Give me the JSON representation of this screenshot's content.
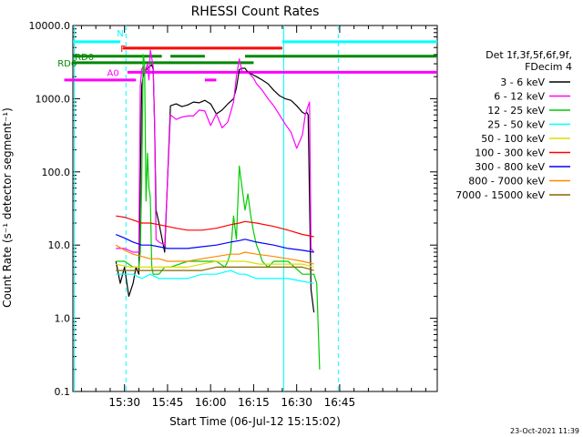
{
  "chart_data": {
    "type": "line",
    "title": "RHESSI Count Rates",
    "xlabel": "Start Time (06-Jul-12 15:15:02)",
    "ylabel": "Count Rate (s⁻¹ detector segment⁻¹)",
    "yscale": "log",
    "ylim": [
      0.1,
      10000
    ],
    "xlim_min": [
      0,
      127
    ],
    "x_tick_labels": [
      "15:30",
      "15:45",
      "16:00",
      "16:15",
      "16:30",
      "16:45"
    ],
    "x_ticks_min": [
      18,
      33,
      48,
      63,
      78,
      93
    ],
    "y_tick_labels": [
      "10000.0",
      "1000.0",
      "100.0",
      "10.0",
      "1.0",
      "0.1"
    ],
    "y_ticks": [
      10000,
      1000,
      100,
      10,
      1,
      0.1
    ],
    "grid": false,
    "legend_position": "right",
    "legend_header": [
      "Det 1f,3f,5f,6f,9f,",
      "FDecim 4"
    ],
    "footer_date": "23-Oct-2021 11:39",
    "series": [
      {
        "name": "3 - 6 keV",
        "color": "#000000",
        "mode": "lines",
        "x": [
          15,
          16.5,
          18,
          19.5,
          21,
          22,
          23,
          23.5,
          24,
          24.5,
          25,
          26,
          27,
          27.5,
          28,
          28.5,
          29,
          30,
          32,
          34,
          36,
          38,
          40,
          42,
          44,
          46,
          48,
          50,
          52,
          54,
          56,
          57,
          58,
          59,
          60,
          61,
          62,
          64,
          66,
          68,
          70,
          72,
          74,
          76,
          78,
          80,
          81,
          81.5,
          82,
          83,
          84
        ],
        "y": [
          6,
          3,
          5,
          2,
          3,
          5,
          4,
          60,
          1500,
          2000,
          2300,
          2600,
          2800,
          2900,
          2500,
          400,
          30,
          20,
          8,
          800,
          850,
          780,
          820,
          900,
          880,
          950,
          850,
          620,
          700,
          850,
          1000,
          1400,
          2500,
          2600,
          2600,
          2300,
          2200,
          2000,
          1800,
          1600,
          1300,
          1100,
          1000,
          950,
          800,
          650,
          620,
          650,
          600,
          2.5,
          1.2
        ]
      },
      {
        "name": "6 - 12 keV",
        "color": "#ff00ff",
        "mode": "lines",
        "x": [
          15,
          18,
          21,
          23,
          23.5,
          24,
          24.5,
          25,
          26,
          26.5,
          27,
          27.5,
          28,
          28.5,
          29,
          30,
          32,
          34,
          36,
          38,
          40,
          42,
          44,
          46,
          48,
          50,
          52,
          54,
          56,
          57,
          58,
          59,
          60,
          61,
          62,
          63,
          64,
          66,
          68,
          70,
          72,
          74,
          76,
          78,
          80,
          81,
          82,
          82.5,
          83,
          84
        ],
        "y": [
          9,
          9,
          8,
          8,
          1500,
          2500,
          2800,
          2200,
          3000,
          1800,
          4600,
          3600,
          2700,
          400,
          12,
          11,
          10,
          600,
          520,
          560,
          580,
          580,
          700,
          680,
          430,
          620,
          400,
          480,
          900,
          2000,
          3500,
          2300,
          2300,
          2300,
          2100,
          1900,
          1600,
          1300,
          1000,
          800,
          600,
          450,
          350,
          210,
          320,
          600,
          800,
          900,
          9,
          8
        ]
      },
      {
        "name": "12 - 25 keV",
        "color": "#00cc00",
        "mode": "lines",
        "x": [
          15,
          18,
          21,
          23,
          23.5,
          24,
          24.5,
          25,
          25.5,
          26,
          26.5,
          27,
          27.5,
          28,
          28.5,
          29,
          30,
          32,
          34,
          40,
          45,
          50,
          53,
          54,
          55,
          56,
          57,
          58,
          59,
          60,
          61,
          62,
          63,
          64,
          65,
          66,
          68,
          70,
          75,
          80,
          84,
          85,
          86
        ],
        "y": [
          6,
          6,
          5,
          5,
          8,
          70,
          4000,
          3000,
          40,
          180,
          60,
          45,
          5,
          4,
          4,
          4,
          4,
          5,
          5,
          6,
          6,
          6,
          5,
          6,
          8,
          25,
          12,
          120,
          60,
          30,
          50,
          25,
          15,
          10,
          8,
          6,
          5,
          6,
          6,
          4,
          4,
          3,
          0.2
        ]
      },
      {
        "name": "25 - 50 keV",
        "color": "#00ffff",
        "mode": "lines",
        "x": [
          15,
          18,
          21,
          24,
          27,
          30,
          33,
          36,
          40,
          45,
          50,
          55,
          58,
          60,
          64,
          70,
          75,
          80,
          84
        ],
        "y": [
          4,
          4,
          4,
          3.5,
          4,
          3.5,
          3.5,
          3.5,
          3.5,
          4,
          4,
          4.5,
          4,
          4,
          3.5,
          3.5,
          3.5,
          3.2,
          3
        ]
      },
      {
        "name": "50 - 100 keV",
        "color": "#dddd00",
        "mode": "lines",
        "x": [
          15,
          20,
          25,
          30,
          35,
          40,
          45,
          50,
          55,
          60,
          65,
          70,
          75,
          80,
          84
        ],
        "y": [
          5.5,
          5,
          5,
          5,
          5,
          5,
          5.5,
          6,
          6,
          6,
          5.5,
          5.5,
          5.5,
          5.5,
          5
        ]
      },
      {
        "name": "100 - 300 keV",
        "color": "#ff0000",
        "mode": "lines",
        "x": [
          15,
          18,
          21,
          24,
          27,
          30,
          33,
          36,
          40,
          45,
          50,
          55,
          58,
          60,
          64,
          70,
          75,
          80,
          84
        ],
        "y": [
          25,
          24,
          22,
          20,
          20,
          19,
          18,
          17,
          16,
          16,
          17,
          19,
          20,
          21,
          20,
          18,
          16,
          14,
          13
        ]
      },
      {
        "name": "300 - 800 keV",
        "color": "#0000ff",
        "mode": "lines",
        "x": [
          15,
          18,
          21,
          24,
          27,
          30,
          33,
          36,
          40,
          45,
          50,
          55,
          58,
          60,
          64,
          70,
          75,
          80,
          84
        ],
        "y": [
          14,
          12.5,
          11,
          10,
          10,
          9.5,
          9,
          9,
          9,
          9.5,
          10,
          11,
          11.5,
          12,
          11,
          10,
          9,
          8.5,
          8
        ]
      },
      {
        "name": "800 - 7000 keV",
        "color": "#ff8800",
        "mode": "lines",
        "x": [
          15,
          18,
          21,
          24,
          27,
          30,
          33,
          36,
          40,
          45,
          50,
          55,
          58,
          60,
          64,
          70,
          75,
          80,
          84
        ],
        "y": [
          10,
          8.5,
          7.5,
          7,
          6.5,
          6.5,
          6,
          6,
          6,
          6.5,
          7,
          7.5,
          7.5,
          8,
          7.5,
          7,
          6.5,
          6,
          5.5
        ]
      },
      {
        "name": "7000 - 15000 keV",
        "color": "#886600",
        "mode": "lines",
        "x": [
          15,
          20,
          25,
          30,
          35,
          40,
          45,
          50,
          55,
          60,
          65,
          70,
          75,
          80,
          84
        ],
        "y": [
          4.5,
          4.5,
          4.5,
          4.5,
          4.5,
          4.5,
          4.5,
          5,
          5,
          5,
          5,
          5,
          5,
          5,
          4.5
        ]
      }
    ],
    "annotations": [
      {
        "text": "N",
        "color": "#00ffff",
        "x_label": 16.5,
        "y": 8000,
        "segments": [
          [
            0,
            16.5,
            6000
          ],
          [
            73,
            127,
            6000
          ]
        ]
      },
      {
        "text": "F",
        "color": "#ff0000",
        "x_label": 17.5,
        "y": 4900,
        "segments": [
          [
            17.5,
            73,
            4900
          ]
        ]
      },
      {
        "text": "RD0",
        "color": "#008800",
        "x_label": 4,
        "y": 3800,
        "segments": [
          [
            0,
            31,
            3800
          ],
          [
            34,
            46,
            3800
          ],
          [
            60,
            127,
            3800
          ]
        ]
      },
      {
        "text": "RD6",
        "color": "#008800",
        "x_label": -2,
        "y": 3100,
        "segments": [
          [
            0,
            63,
            3100
          ]
        ]
      },
      {
        "text": "A0",
        "color": "#ff00ff",
        "x_label": 14,
        "y": 2300,
        "segments": [
          [
            19,
            127,
            2300
          ]
        ]
      },
      {
        "text": "",
        "color": "#ff00ff",
        "x_label": 0,
        "y": 1800,
        "segments": [
          [
            -3,
            22,
            1800
          ],
          [
            46,
            50,
            1800
          ]
        ]
      }
    ],
    "vertical_markers": [
      {
        "x": 18.5,
        "color": "#00ffff",
        "style": "dashed"
      },
      {
        "x": 92.5,
        "color": "#00ffff",
        "style": "dashed"
      },
      {
        "x": 73.5,
        "color": "#00ffff",
        "style": "solid"
      },
      {
        "x": 0.5,
        "color": "#00ffff",
        "style": "solid"
      }
    ]
  }
}
